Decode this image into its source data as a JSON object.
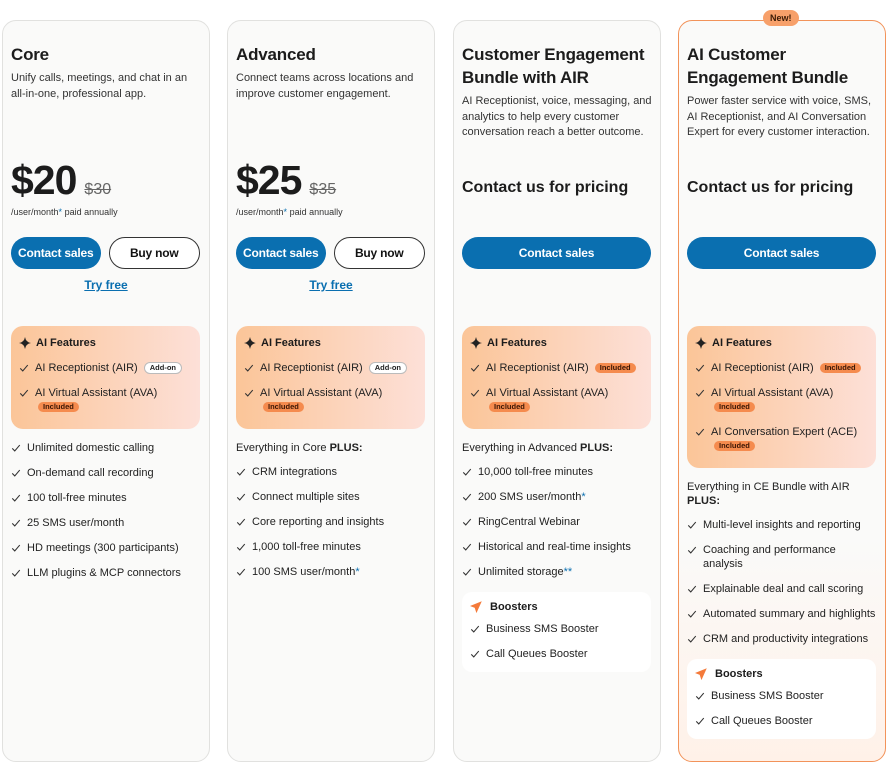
{
  "plans": [
    {
      "name": "Core",
      "description": "Unify calls, meetings, and chat in an all-in-one, professional app.",
      "price": "$20",
      "old_price": "$30",
      "unit": "/user/month",
      "unit_mark": "*",
      "billing": "paid annually",
      "buttons": [
        "Contact sales",
        "Buy now"
      ],
      "try_free": "Try free",
      "ai": {
        "title": "AI Features",
        "items": [
          {
            "label": "AI Receptionist (AIR)",
            "badge": "Add-on"
          },
          {
            "label": "AI Virtual Assistant (AVA)",
            "badge": "Included"
          }
        ]
      },
      "features": [
        "Unlimited domestic calling",
        "On-demand call recording",
        "100 toll-free minutes",
        "25 SMS user/month",
        "HD meetings (300 participants)",
        "LLM plugins & MCP connectors"
      ]
    },
    {
      "name": "Advanced",
      "description": "Connect teams across locations and improve customer engagement.",
      "price": "$25",
      "old_price": "$35",
      "unit": "/user/month",
      "unit_mark": "*",
      "billing": "paid annually",
      "buttons": [
        "Contact sales",
        "Buy now"
      ],
      "try_free": "Try free",
      "ai": {
        "title": "AI Features",
        "items": [
          {
            "label": "AI Receptionist (AIR)",
            "badge": "Add-on"
          },
          {
            "label": "AI Virtual Assistant (AVA)",
            "badge": "Included"
          }
        ]
      },
      "intro": {
        "text": "Everything in Core",
        "bold": "PLUS:"
      },
      "features": [
        "CRM integrations",
        "Connect multiple sites",
        "Core reporting and insights",
        "1,000 toll-free minutes",
        {
          "text": "100 SMS user/month",
          "mark": "*"
        }
      ]
    },
    {
      "name": "Customer Engagement Bundle with AIR",
      "description": "AI Receptionist, voice, messaging, and analytics to help every customer conversation reach a better outcome.",
      "pricing_note": "Contact us for pricing",
      "buttons": [
        "Contact sales"
      ],
      "ai": {
        "title": "AI Features",
        "items": [
          {
            "label": "AI Receptionist (AIR)",
            "badge": "Included"
          },
          {
            "label": "AI Virtual Assistant (AVA)",
            "badge": "Included"
          }
        ]
      },
      "intro": {
        "text": "Everything in Advanced",
        "bold": "PLUS:"
      },
      "features": [
        "10,000 toll-free minutes",
        {
          "text": "200 SMS user/month",
          "mark": "*"
        },
        "RingCentral Webinar",
        "Historical and real-time insights",
        {
          "text": "Unlimited storage",
          "mark": "**"
        }
      ],
      "boosters": {
        "title": "Boosters",
        "items": [
          "Business SMS Booster",
          "Call Queues Booster"
        ]
      }
    },
    {
      "badge": "New!",
      "name": "AI Customer Engagement Bundle",
      "description": "Power faster service with voice, SMS, AI Receptionist, and AI Conversation Expert for every customer interaction.",
      "pricing_note": "Contact us for pricing",
      "buttons": [
        "Contact sales"
      ],
      "ai": {
        "title": "AI Features",
        "items": [
          {
            "label": "AI Receptionist (AIR)",
            "badge": "Included"
          },
          {
            "label": "AI Virtual Assistant (AVA)",
            "badge": "Included"
          },
          {
            "label": "AI Conversation Expert (ACE)",
            "badge": "Included"
          }
        ]
      },
      "intro": {
        "text": "Everything in CE Bundle with AIR",
        "bold": "PLUS:"
      },
      "features": [
        "Multi-level insights and reporting",
        "Coaching and performance analysis",
        "Explainable deal and call scoring",
        "Automated summary and highlights",
        "CRM and productivity integrations"
      ],
      "boosters": {
        "title": "Boosters",
        "items": [
          "Business SMS Booster",
          "Call Queues Booster"
        ]
      }
    }
  ]
}
